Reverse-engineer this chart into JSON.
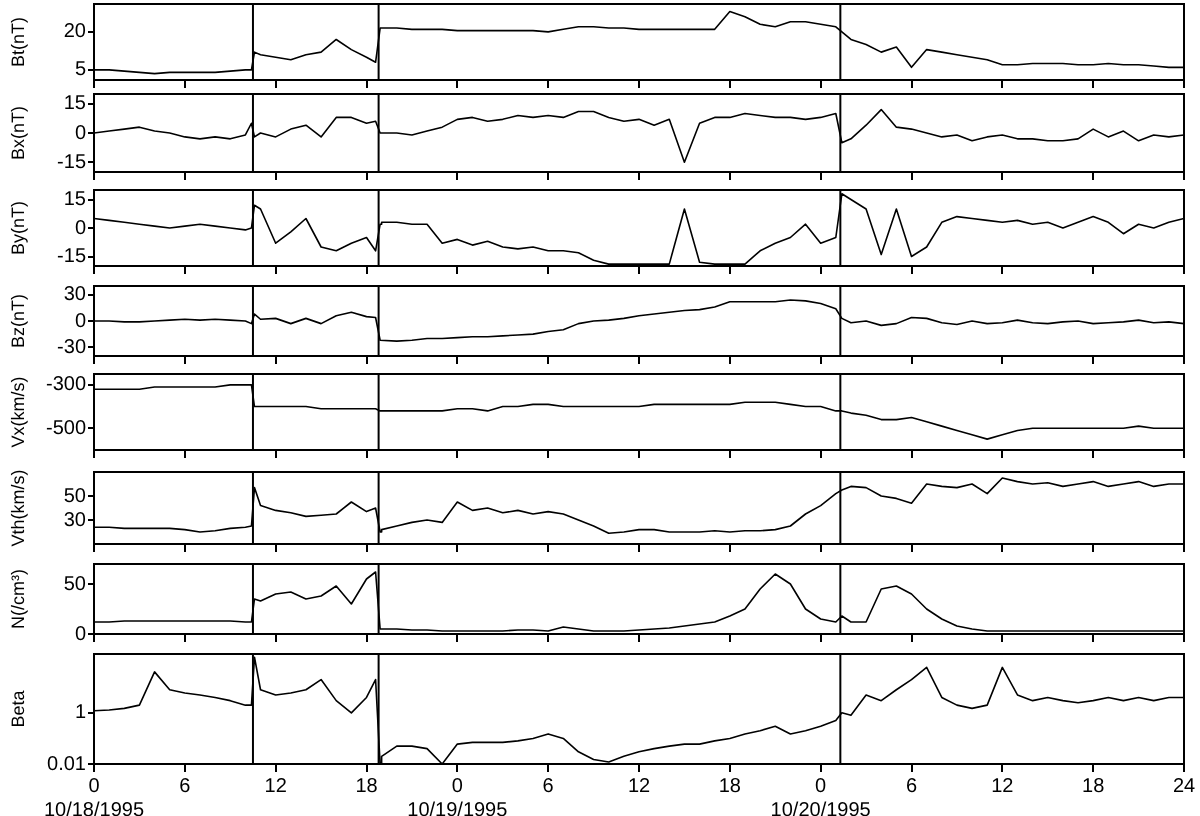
{
  "chart_data": [
    {
      "type": "line",
      "ylabel": "Bt(nT)",
      "color": "#000000",
      "xlim": [
        "1995-10-18T00:00",
        "1995-10-21T00:00"
      ],
      "ylim": [
        1,
        31
      ],
      "yticks": [
        5,
        20
      ],
      "tick_labels": "y",
      "ref_lines": [
        {
          "axis": "x",
          "value": "1995-10-18T10:30"
        },
        {
          "axis": "x",
          "value": "1995-10-18T18:48"
        },
        {
          "axis": "x",
          "value": "1995-10-20T01:18"
        }
      ],
      "xticks": [
        "1995-10-18T00:00",
        "1995-10-18T06:00",
        "1995-10-18T12:00",
        "1995-10-18T18:00",
        "1995-10-19T00:00",
        "1995-10-19T06:00",
        "1995-10-19T12:00",
        "1995-10-19T18:00",
        "1995-10-20T00:00",
        "1995-10-20T06:00",
        "1995-10-20T12:00",
        "1995-10-20T18:00",
        "1995-10-21T00:00"
      ],
      "x": [
        "1995-10-18T00:00",
        "1995-10-18T01:00",
        "1995-10-18T02:00",
        "1995-10-18T03:00",
        "1995-10-18T04:00",
        "1995-10-18T05:00",
        "1995-10-18T06:00",
        "1995-10-18T07:00",
        "1995-10-18T08:00",
        "1995-10-18T09:00",
        "1995-10-18T10:00",
        "1995-10-18T10:24",
        "1995-10-18T10:36",
        "1995-10-18T11:00",
        "1995-10-18T12:00",
        "1995-10-18T13:00",
        "1995-10-18T14:00",
        "1995-10-18T15:00",
        "1995-10-18T16:00",
        "1995-10-18T17:00",
        "1995-10-18T18:00",
        "1995-10-18T18:36",
        "1995-10-18T18:54",
        "1995-10-18T19:00",
        "1995-10-18T20:00",
        "1995-10-18T21:00",
        "1995-10-18T22:00",
        "1995-10-18T23:00",
        "1995-10-19T00:00",
        "1995-10-19T01:00",
        "1995-10-19T02:00",
        "1995-10-19T03:00",
        "1995-10-19T04:00",
        "1995-10-19T05:00",
        "1995-10-19T06:00",
        "1995-10-19T07:00",
        "1995-10-19T08:00",
        "1995-10-19T09:00",
        "1995-10-19T10:00",
        "1995-10-19T11:00",
        "1995-10-19T12:00",
        "1995-10-19T13:00",
        "1995-10-19T14:00",
        "1995-10-19T15:00",
        "1995-10-19T16:00",
        "1995-10-19T17:00",
        "1995-10-19T18:00",
        "1995-10-19T19:00",
        "1995-10-19T20:00",
        "1995-10-19T21:00",
        "1995-10-19T22:00",
        "1995-10-19T23:00",
        "1995-10-20T00:00",
        "1995-10-20T01:00",
        "1995-10-20T01:24",
        "1995-10-20T02:00",
        "1995-10-20T03:00",
        "1995-10-20T04:00",
        "1995-10-20T05:00",
        "1995-10-20T06:00",
        "1995-10-20T07:00",
        "1995-10-20T08:00",
        "1995-10-20T09:00",
        "1995-10-20T10:00",
        "1995-10-20T11:00",
        "1995-10-20T12:00",
        "1995-10-20T13:00",
        "1995-10-20T14:00",
        "1995-10-20T15:00",
        "1995-10-20T16:00",
        "1995-10-20T17:00",
        "1995-10-20T18:00",
        "1995-10-20T19:00",
        "1995-10-20T20:00",
        "1995-10-20T21:00",
        "1995-10-20T22:00",
        "1995-10-20T23:00",
        "1995-10-21T00:00"
      ],
      "values": [
        5,
        5,
        4.5,
        4,
        3.5,
        4,
        4,
        4,
        4,
        4.5,
        5,
        5,
        12,
        11,
        10,
        9,
        11,
        12,
        17,
        13,
        10,
        8,
        21.5,
        21.5,
        21.5,
        21,
        21,
        21,
        20.5,
        20.5,
        20.5,
        20.5,
        20.5,
        20.5,
        20,
        21,
        22,
        22,
        21.5,
        21.5,
        21,
        21,
        21,
        21,
        21,
        21,
        28,
        26,
        23,
        22,
        24,
        24,
        23,
        22,
        20,
        17,
        15,
        12,
        14,
        6,
        13,
        12,
        11,
        10,
        9,
        7,
        7,
        7.5,
        7.5,
        7.5,
        7,
        7,
        7.5,
        7,
        7,
        6.5,
        6,
        6
      ]
    },
    {
      "type": "line",
      "ylabel": "Bx(nT)",
      "color": "#000000",
      "xlim": [
        "1995-10-18T00:00",
        "1995-10-21T00:00"
      ],
      "ylim": [
        -20,
        20
      ],
      "yticks": [
        -15,
        0,
        15
      ],
      "tick_labels": "y",
      "ref_lines": [
        {
          "axis": "x",
          "value": "1995-10-18T10:30"
        },
        {
          "axis": "x",
          "value": "1995-10-18T18:48"
        },
        {
          "axis": "x",
          "value": "1995-10-20T01:18"
        }
      ],
      "xticks": [
        "1995-10-18T00:00",
        "1995-10-18T06:00",
        "1995-10-18T12:00",
        "1995-10-18T18:00",
        "1995-10-19T00:00",
        "1995-10-19T06:00",
        "1995-10-19T12:00",
        "1995-10-19T18:00",
        "1995-10-20T00:00",
        "1995-10-20T06:00",
        "1995-10-20T12:00",
        "1995-10-20T18:00",
        "1995-10-21T00:00"
      ],
      "x": [
        "1995-10-18T00:00",
        "1995-10-18T01:00",
        "1995-10-18T02:00",
        "1995-10-18T03:00",
        "1995-10-18T04:00",
        "1995-10-18T05:00",
        "1995-10-18T06:00",
        "1995-10-18T07:00",
        "1995-10-18T08:00",
        "1995-10-18T09:00",
        "1995-10-18T10:00",
        "1995-10-18T10:24",
        "1995-10-18T10:36",
        "1995-10-18T11:00",
        "1995-10-18T12:00",
        "1995-10-18T13:00",
        "1995-10-18T14:00",
        "1995-10-18T15:00",
        "1995-10-18T16:00",
        "1995-10-18T17:00",
        "1995-10-18T18:00",
        "1995-10-18T18:36",
        "1995-10-18T18:54",
        "1995-10-18T19:00",
        "1995-10-18T20:00",
        "1995-10-18T21:00",
        "1995-10-18T22:00",
        "1995-10-18T23:00",
        "1995-10-19T00:00",
        "1995-10-19T01:00",
        "1995-10-19T02:00",
        "1995-10-19T03:00",
        "1995-10-19T04:00",
        "1995-10-19T05:00",
        "1995-10-19T06:00",
        "1995-10-19T07:00",
        "1995-10-19T08:00",
        "1995-10-19T09:00",
        "1995-10-19T10:00",
        "1995-10-19T11:00",
        "1995-10-19T12:00",
        "1995-10-19T13:00",
        "1995-10-19T14:00",
        "1995-10-19T15:00",
        "1995-10-19T16:00",
        "1995-10-19T17:00",
        "1995-10-19T18:00",
        "1995-10-19T19:00",
        "1995-10-19T20:00",
        "1995-10-19T21:00",
        "1995-10-19T22:00",
        "1995-10-19T23:00",
        "1995-10-20T00:00",
        "1995-10-20T01:00",
        "1995-10-20T01:24",
        "1995-10-20T02:00",
        "1995-10-20T03:00",
        "1995-10-20T04:00",
        "1995-10-20T05:00",
        "1995-10-20T06:00",
        "1995-10-20T07:00",
        "1995-10-20T08:00",
        "1995-10-20T09:00",
        "1995-10-20T10:00",
        "1995-10-20T11:00",
        "1995-10-20T12:00",
        "1995-10-20T13:00",
        "1995-10-20T14:00",
        "1995-10-20T15:00",
        "1995-10-20T16:00",
        "1995-10-20T17:00",
        "1995-10-20T18:00",
        "1995-10-20T19:00",
        "1995-10-20T20:00",
        "1995-10-20T21:00",
        "1995-10-20T22:00",
        "1995-10-20T23:00",
        "1995-10-21T00:00"
      ],
      "values": [
        0,
        1,
        2,
        3,
        1,
        0,
        -2,
        -3,
        -2,
        -3,
        -1,
        5,
        -2,
        0,
        -2,
        2,
        4,
        -2,
        8,
        8,
        5,
        6,
        0,
        0,
        0,
        -1,
        1,
        3,
        7,
        8,
        6,
        7,
        9,
        8,
        9,
        8,
        11,
        11,
        8,
        6,
        7,
        4,
        7,
        -15,
        5,
        8,
        8,
        10,
        9,
        8,
        8,
        7,
        8,
        10,
        -5,
        -3,
        4,
        12,
        3,
        2,
        0,
        -2,
        -1,
        -4,
        -2,
        -1,
        -3,
        -3,
        -4,
        -4,
        -3,
        2,
        -2,
        1,
        -4,
        -1,
        -2,
        -1
      ]
    },
    {
      "type": "line",
      "ylabel": "By(nT)",
      "color": "#000000",
      "xlim": [
        "1995-10-18T00:00",
        "1995-10-21T00:00"
      ],
      "ylim": [
        -20,
        20
      ],
      "yticks": [
        -15,
        0,
        15
      ],
      "tick_labels": "y",
      "ref_lines": [
        {
          "axis": "x",
          "value": "1995-10-18T10:30"
        },
        {
          "axis": "x",
          "value": "1995-10-18T18:48"
        },
        {
          "axis": "x",
          "value": "1995-10-20T01:18"
        }
      ],
      "xticks": [
        "1995-10-18T00:00",
        "1995-10-18T06:00",
        "1995-10-18T12:00",
        "1995-10-18T18:00",
        "1995-10-19T00:00",
        "1995-10-19T06:00",
        "1995-10-19T12:00",
        "1995-10-19T18:00",
        "1995-10-20T00:00",
        "1995-10-20T06:00",
        "1995-10-20T12:00",
        "1995-10-20T18:00",
        "1995-10-21T00:00"
      ],
      "x": [
        "1995-10-18T00:00",
        "1995-10-18T01:00",
        "1995-10-18T02:00",
        "1995-10-18T03:00",
        "1995-10-18T04:00",
        "1995-10-18T05:00",
        "1995-10-18T06:00",
        "1995-10-18T07:00",
        "1995-10-18T08:00",
        "1995-10-18T09:00",
        "1995-10-18T10:00",
        "1995-10-18T10:24",
        "1995-10-18T10:36",
        "1995-10-18T11:00",
        "1995-10-18T12:00",
        "1995-10-18T13:00",
        "1995-10-18T14:00",
        "1995-10-18T15:00",
        "1995-10-18T16:00",
        "1995-10-18T17:00",
        "1995-10-18T18:00",
        "1995-10-18T18:36",
        "1995-10-18T18:54",
        "1995-10-18T19:00",
        "1995-10-18T20:00",
        "1995-10-18T21:00",
        "1995-10-18T22:00",
        "1995-10-18T23:00",
        "1995-10-19T00:00",
        "1995-10-19T01:00",
        "1995-10-19T02:00",
        "1995-10-19T03:00",
        "1995-10-19T04:00",
        "1995-10-19T05:00",
        "1995-10-19T06:00",
        "1995-10-19T07:00",
        "1995-10-19T08:00",
        "1995-10-19T09:00",
        "1995-10-19T10:00",
        "1995-10-19T11:00",
        "1995-10-19T12:00",
        "1995-10-19T13:00",
        "1995-10-19T14:00",
        "1995-10-19T15:00",
        "1995-10-19T16:00",
        "1995-10-19T17:00",
        "1995-10-19T18:00",
        "1995-10-19T19:00",
        "1995-10-19T20:00",
        "1995-10-19T21:00",
        "1995-10-19T22:00",
        "1995-10-19T23:00",
        "1995-10-20T00:00",
        "1995-10-20T01:00",
        "1995-10-20T01:24",
        "1995-10-20T02:00",
        "1995-10-20T03:00",
        "1995-10-20T04:00",
        "1995-10-20T05:00",
        "1995-10-20T06:00",
        "1995-10-20T07:00",
        "1995-10-20T08:00",
        "1995-10-20T09:00",
        "1995-10-20T10:00",
        "1995-10-20T11:00",
        "1995-10-20T12:00",
        "1995-10-20T13:00",
        "1995-10-20T14:00",
        "1995-10-20T15:00",
        "1995-10-20T16:00",
        "1995-10-20T17:00",
        "1995-10-20T18:00",
        "1995-10-20T19:00",
        "1995-10-20T20:00",
        "1995-10-20T21:00",
        "1995-10-20T22:00",
        "1995-10-20T23:00",
        "1995-10-21T00:00"
      ],
      "values": [
        5,
        4,
        3,
        2,
        1,
        0,
        1,
        2,
        1,
        0,
        -1,
        0,
        12,
        10,
        -8,
        -2,
        5,
        -10,
        -12,
        -8,
        -5,
        -12,
        2,
        3,
        3,
        2,
        2,
        -8,
        -6,
        -9,
        -7,
        -10,
        -11,
        -10,
        -12,
        -12,
        -13,
        -17,
        -19,
        -19,
        -19,
        -19,
        -19,
        10,
        -18,
        -19,
        -19,
        -19,
        -12,
        -8,
        -5,
        2,
        -8,
        -5,
        18,
        15,
        10,
        -14,
        10,
        -15,
        -10,
        3,
        6,
        5,
        4,
        3,
        4,
        2,
        3,
        0,
        3,
        6,
        3,
        -3,
        2,
        0,
        3,
        5
      ]
    },
    {
      "type": "line",
      "ylabel": "Bz(nT)",
      "color": "#000000",
      "xlim": [
        "1995-10-18T00:00",
        "1995-10-21T00:00"
      ],
      "ylim": [
        -40,
        40
      ],
      "yticks": [
        -30,
        0,
        30
      ],
      "tick_labels": "y",
      "ref_lines": [
        {
          "axis": "x",
          "value": "1995-10-18T10:30"
        },
        {
          "axis": "x",
          "value": "1995-10-18T18:48"
        },
        {
          "axis": "x",
          "value": "1995-10-20T01:18"
        }
      ],
      "xticks": [
        "1995-10-18T00:00",
        "1995-10-18T06:00",
        "1995-10-18T12:00",
        "1995-10-18T18:00",
        "1995-10-19T00:00",
        "1995-10-19T06:00",
        "1995-10-19T12:00",
        "1995-10-19T18:00",
        "1995-10-20T00:00",
        "1995-10-20T06:00",
        "1995-10-20T12:00",
        "1995-10-20T18:00",
        "1995-10-21T00:00"
      ],
      "x": [
        "1995-10-18T00:00",
        "1995-10-18T01:00",
        "1995-10-18T02:00",
        "1995-10-18T03:00",
        "1995-10-18T04:00",
        "1995-10-18T05:00",
        "1995-10-18T06:00",
        "1995-10-18T07:00",
        "1995-10-18T08:00",
        "1995-10-18T09:00",
        "1995-10-18T10:00",
        "1995-10-18T10:24",
        "1995-10-18T10:36",
        "1995-10-18T11:00",
        "1995-10-18T12:00",
        "1995-10-18T13:00",
        "1995-10-18T14:00",
        "1995-10-18T15:00",
        "1995-10-18T16:00",
        "1995-10-18T17:00",
        "1995-10-18T18:00",
        "1995-10-18T18:36",
        "1995-10-18T18:54",
        "1995-10-18T19:00",
        "1995-10-18T20:00",
        "1995-10-18T21:00",
        "1995-10-18T22:00",
        "1995-10-18T23:00",
        "1995-10-19T00:00",
        "1995-10-19T01:00",
        "1995-10-19T02:00",
        "1995-10-19T03:00",
        "1995-10-19T04:00",
        "1995-10-19T05:00",
        "1995-10-19T06:00",
        "1995-10-19T07:00",
        "1995-10-19T08:00",
        "1995-10-19T09:00",
        "1995-10-19T10:00",
        "1995-10-19T11:00",
        "1995-10-19T12:00",
        "1995-10-19T13:00",
        "1995-10-19T14:00",
        "1995-10-19T15:00",
        "1995-10-19T16:00",
        "1995-10-19T17:00",
        "1995-10-19T18:00",
        "1995-10-19T19:00",
        "1995-10-19T20:00",
        "1995-10-19T21:00",
        "1995-10-19T22:00",
        "1995-10-19T23:00",
        "1995-10-20T00:00",
        "1995-10-20T01:00",
        "1995-10-20T01:24",
        "1995-10-20T02:00",
        "1995-10-20T03:00",
        "1995-10-20T04:00",
        "1995-10-20T05:00",
        "1995-10-20T06:00",
        "1995-10-20T07:00",
        "1995-10-20T08:00",
        "1995-10-20T09:00",
        "1995-10-20T10:00",
        "1995-10-20T11:00",
        "1995-10-20T12:00",
        "1995-10-20T13:00",
        "1995-10-20T14:00",
        "1995-10-20T15:00",
        "1995-10-20T16:00",
        "1995-10-20T17:00",
        "1995-10-20T18:00",
        "1995-10-20T19:00",
        "1995-10-20T20:00",
        "1995-10-20T21:00",
        "1995-10-20T22:00",
        "1995-10-20T23:00",
        "1995-10-21T00:00"
      ],
      "values": [
        0,
        0,
        -1,
        -1,
        0,
        1,
        2,
        1,
        2,
        1,
        0,
        -3,
        8,
        2,
        3,
        -3,
        3,
        -3,
        6,
        10,
        5,
        4,
        -22,
        -22,
        -23,
        -22,
        -20,
        -20,
        -19,
        -18,
        -18,
        -17,
        -16,
        -15,
        -12,
        -10,
        -3,
        0,
        1,
        3,
        6,
        8,
        10,
        12,
        13,
        16,
        22,
        22,
        22,
        22,
        24,
        23,
        20,
        14,
        3,
        -2,
        0,
        -5,
        -3,
        4,
        3,
        -2,
        -4,
        0,
        -3,
        -2,
        1,
        -2,
        -3,
        -1,
        0,
        -3,
        -2,
        -1,
        1,
        -2,
        -1,
        -3
      ]
    },
    {
      "type": "line",
      "ylabel": "Vx(km/s)",
      "color": "#000000",
      "xlim": [
        "1995-10-18T00:00",
        "1995-10-21T00:00"
      ],
      "ylim": [
        -600,
        -250
      ],
      "yticks": [
        -500,
        -300
      ],
      "tick_labels": "y",
      "ref_lines": [
        {
          "axis": "x",
          "value": "1995-10-18T10:30"
        },
        {
          "axis": "x",
          "value": "1995-10-18T18:48"
        },
        {
          "axis": "x",
          "value": "1995-10-20T01:18"
        }
      ],
      "xticks": [
        "1995-10-18T00:00",
        "1995-10-18T06:00",
        "1995-10-18T12:00",
        "1995-10-18T18:00",
        "1995-10-19T00:00",
        "1995-10-19T06:00",
        "1995-10-19T12:00",
        "1995-10-19T18:00",
        "1995-10-20T00:00",
        "1995-10-20T06:00",
        "1995-10-20T12:00",
        "1995-10-20T18:00",
        "1995-10-21T00:00"
      ],
      "x": [
        "1995-10-18T00:00",
        "1995-10-18T01:00",
        "1995-10-18T02:00",
        "1995-10-18T03:00",
        "1995-10-18T04:00",
        "1995-10-18T05:00",
        "1995-10-18T06:00",
        "1995-10-18T07:00",
        "1995-10-18T08:00",
        "1995-10-18T09:00",
        "1995-10-18T10:00",
        "1995-10-18T10:24",
        "1995-10-18T10:36",
        "1995-10-18T11:00",
        "1995-10-18T12:00",
        "1995-10-18T13:00",
        "1995-10-18T14:00",
        "1995-10-18T15:00",
        "1995-10-18T16:00",
        "1995-10-18T17:00",
        "1995-10-18T18:00",
        "1995-10-18T18:36",
        "1995-10-18T18:54",
        "1995-10-18T19:00",
        "1995-10-18T20:00",
        "1995-10-18T21:00",
        "1995-10-18T22:00",
        "1995-10-18T23:00",
        "1995-10-19T00:00",
        "1995-10-19T01:00",
        "1995-10-19T02:00",
        "1995-10-19T03:00",
        "1995-10-19T04:00",
        "1995-10-19T05:00",
        "1995-10-19T06:00",
        "1995-10-19T07:00",
        "1995-10-19T08:00",
        "1995-10-19T09:00",
        "1995-10-19T10:00",
        "1995-10-19T11:00",
        "1995-10-19T12:00",
        "1995-10-19T13:00",
        "1995-10-19T14:00",
        "1995-10-19T15:00",
        "1995-10-19T16:00",
        "1995-10-19T17:00",
        "1995-10-19T18:00",
        "1995-10-19T19:00",
        "1995-10-19T20:00",
        "1995-10-19T21:00",
        "1995-10-19T22:00",
        "1995-10-19T23:00",
        "1995-10-20T00:00",
        "1995-10-20T01:00",
        "1995-10-20T01:24",
        "1995-10-20T02:00",
        "1995-10-20T03:00",
        "1995-10-20T04:00",
        "1995-10-20T05:00",
        "1995-10-20T06:00",
        "1995-10-20T07:00",
        "1995-10-20T08:00",
        "1995-10-20T09:00",
        "1995-10-20T10:00",
        "1995-10-20T11:00",
        "1995-10-20T12:00",
        "1995-10-20T13:00",
        "1995-10-20T14:00",
        "1995-10-20T15:00",
        "1995-10-20T16:00",
        "1995-10-20T17:00",
        "1995-10-20T18:00",
        "1995-10-20T19:00",
        "1995-10-20T20:00",
        "1995-10-20T21:00",
        "1995-10-20T22:00",
        "1995-10-20T23:00",
        "1995-10-21T00:00"
      ],
      "values": [
        -320,
        -320,
        -320,
        -320,
        -310,
        -310,
        -310,
        -310,
        -310,
        -300,
        -300,
        -300,
        -400,
        -400,
        -400,
        -400,
        -400,
        -410,
        -410,
        -410,
        -410,
        -410,
        -420,
        -420,
        -420,
        -420,
        -420,
        -420,
        -410,
        -410,
        -420,
        -400,
        -400,
        -390,
        -390,
        -400,
        -400,
        -400,
        -400,
        -400,
        -400,
        -390,
        -390,
        -390,
        -390,
        -390,
        -390,
        -380,
        -380,
        -380,
        -390,
        -400,
        -400,
        -420,
        -420,
        -430,
        -440,
        -460,
        -460,
        -450,
        -470,
        -490,
        -510,
        -530,
        -550,
        -530,
        -510,
        -500,
        -500,
        -500,
        -500,
        -500,
        -500,
        -500,
        -490,
        -500,
        -500,
        -500
      ]
    },
    {
      "type": "line",
      "ylabel": "Vth(km/s)",
      "color": "#000000",
      "xlim": [
        "1995-10-18T00:00",
        "1995-10-21T00:00"
      ],
      "ylim": [
        10,
        70
      ],
      "yticks": [
        30,
        50
      ],
      "tick_labels": "y",
      "ref_lines": [
        {
          "axis": "x",
          "value": "1995-10-18T10:30"
        },
        {
          "axis": "x",
          "value": "1995-10-18T18:48"
        },
        {
          "axis": "x",
          "value": "1995-10-20T01:18"
        }
      ],
      "xticks": [
        "1995-10-18T00:00",
        "1995-10-18T06:00",
        "1995-10-18T12:00",
        "1995-10-18T18:00",
        "1995-10-19T00:00",
        "1995-10-19T06:00",
        "1995-10-19T12:00",
        "1995-10-19T18:00",
        "1995-10-20T00:00",
        "1995-10-20T06:00",
        "1995-10-20T12:00",
        "1995-10-20T18:00",
        "1995-10-21T00:00"
      ],
      "x": [
        "1995-10-18T00:00",
        "1995-10-18T01:00",
        "1995-10-18T02:00",
        "1995-10-18T03:00",
        "1995-10-18T04:00",
        "1995-10-18T05:00",
        "1995-10-18T06:00",
        "1995-10-18T07:00",
        "1995-10-18T08:00",
        "1995-10-18T09:00",
        "1995-10-18T10:00",
        "1995-10-18T10:24",
        "1995-10-18T10:36",
        "1995-10-18T11:00",
        "1995-10-18T12:00",
        "1995-10-18T13:00",
        "1995-10-18T14:00",
        "1995-10-18T15:00",
        "1995-10-18T16:00",
        "1995-10-18T17:00",
        "1995-10-18T18:00",
        "1995-10-18T18:36",
        "1995-10-18T18:54",
        "1995-10-18T19:00",
        "1995-10-18T20:00",
        "1995-10-18T21:00",
        "1995-10-18T22:00",
        "1995-10-18T23:00",
        "1995-10-19T00:00",
        "1995-10-19T01:00",
        "1995-10-19T02:00",
        "1995-10-19T03:00",
        "1995-10-19T04:00",
        "1995-10-19T05:00",
        "1995-10-19T06:00",
        "1995-10-19T07:00",
        "1995-10-19T08:00",
        "1995-10-19T09:00",
        "1995-10-19T10:00",
        "1995-10-19T11:00",
        "1995-10-19T12:00",
        "1995-10-19T13:00",
        "1995-10-19T14:00",
        "1995-10-19T15:00",
        "1995-10-19T16:00",
        "1995-10-19T17:00",
        "1995-10-19T18:00",
        "1995-10-19T19:00",
        "1995-10-19T20:00",
        "1995-10-19T21:00",
        "1995-10-19T22:00",
        "1995-10-19T23:00",
        "1995-10-20T00:00",
        "1995-10-20T01:00",
        "1995-10-20T01:24",
        "1995-10-20T02:00",
        "1995-10-20T03:00",
        "1995-10-20T04:00",
        "1995-10-20T05:00",
        "1995-10-20T06:00",
        "1995-10-20T07:00",
        "1995-10-20T08:00",
        "1995-10-20T09:00",
        "1995-10-20T10:00",
        "1995-10-20T11:00",
        "1995-10-20T12:00",
        "1995-10-20T13:00",
        "1995-10-20T14:00",
        "1995-10-20T15:00",
        "1995-10-20T16:00",
        "1995-10-20T17:00",
        "1995-10-20T18:00",
        "1995-10-20T19:00",
        "1995-10-20T20:00",
        "1995-10-20T21:00",
        "1995-10-20T22:00",
        "1995-10-20T23:00",
        "1995-10-21T00:00"
      ],
      "values": [
        24,
        24,
        23,
        23,
        23,
        23,
        22,
        20,
        21,
        23,
        24,
        25,
        57,
        42,
        38,
        36,
        33,
        34,
        35,
        45,
        37,
        40,
        20,
        22,
        25,
        28,
        30,
        28,
        45,
        38,
        40,
        36,
        38,
        35,
        37,
        35,
        30,
        25,
        19,
        20,
        22,
        22,
        20,
        20,
        20,
        21,
        20,
        21,
        21,
        22,
        25,
        35,
        42,
        52,
        55,
        58,
        57,
        50,
        48,
        44,
        60,
        58,
        57,
        60,
        52,
        65,
        62,
        60,
        61,
        58,
        60,
        62,
        58,
        60,
        62,
        58,
        60,
        60
      ]
    },
    {
      "type": "line",
      "ylabel": "N(/cm³)",
      "color": "#000000",
      "xlim": [
        "1995-10-18T00:00",
        "1995-10-21T00:00"
      ],
      "ylim": [
        0,
        70
      ],
      "yticks": [
        0,
        50
      ],
      "tick_labels": "y",
      "ref_lines": [
        {
          "axis": "x",
          "value": "1995-10-18T10:30"
        },
        {
          "axis": "x",
          "value": "1995-10-18T18:48"
        },
        {
          "axis": "x",
          "value": "1995-10-20T01:18"
        }
      ],
      "xticks": [
        "1995-10-18T00:00",
        "1995-10-18T06:00",
        "1995-10-18T12:00",
        "1995-10-18T18:00",
        "1995-10-19T00:00",
        "1995-10-19T06:00",
        "1995-10-19T12:00",
        "1995-10-19T18:00",
        "1995-10-20T00:00",
        "1995-10-20T06:00",
        "1995-10-20T12:00",
        "1995-10-20T18:00",
        "1995-10-21T00:00"
      ],
      "x": [
        "1995-10-18T00:00",
        "1995-10-18T01:00",
        "1995-10-18T02:00",
        "1995-10-18T03:00",
        "1995-10-18T04:00",
        "1995-10-18T05:00",
        "1995-10-18T06:00",
        "1995-10-18T07:00",
        "1995-10-18T08:00",
        "1995-10-18T09:00",
        "1995-10-18T10:00",
        "1995-10-18T10:24",
        "1995-10-18T10:36",
        "1995-10-18T11:00",
        "1995-10-18T12:00",
        "1995-10-18T13:00",
        "1995-10-18T14:00",
        "1995-10-18T15:00",
        "1995-10-18T16:00",
        "1995-10-18T17:00",
        "1995-10-18T18:00",
        "1995-10-18T18:36",
        "1995-10-18T18:54",
        "1995-10-18T19:00",
        "1995-10-18T20:00",
        "1995-10-18T21:00",
        "1995-10-18T22:00",
        "1995-10-18T23:00",
        "1995-10-19T00:00",
        "1995-10-19T01:00",
        "1995-10-19T02:00",
        "1995-10-19T03:00",
        "1995-10-19T04:00",
        "1995-10-19T05:00",
        "1995-10-19T06:00",
        "1995-10-19T07:00",
        "1995-10-19T08:00",
        "1995-10-19T09:00",
        "1995-10-19T10:00",
        "1995-10-19T11:00",
        "1995-10-19T12:00",
        "1995-10-19T13:00",
        "1995-10-19T14:00",
        "1995-10-19T15:00",
        "1995-10-19T16:00",
        "1995-10-19T17:00",
        "1995-10-19T18:00",
        "1995-10-19T19:00",
        "1995-10-19T20:00",
        "1995-10-19T21:00",
        "1995-10-19T22:00",
        "1995-10-19T23:00",
        "1995-10-20T00:00",
        "1995-10-20T01:00",
        "1995-10-20T01:24",
        "1995-10-20T02:00",
        "1995-10-20T03:00",
        "1995-10-20T04:00",
        "1995-10-20T05:00",
        "1995-10-20T06:00",
        "1995-10-20T07:00",
        "1995-10-20T08:00",
        "1995-10-20T09:00",
        "1995-10-20T10:00",
        "1995-10-20T11:00",
        "1995-10-20T12:00",
        "1995-10-20T13:00",
        "1995-10-20T14:00",
        "1995-10-20T15:00",
        "1995-10-20T16:00",
        "1995-10-20T17:00",
        "1995-10-20T18:00",
        "1995-10-20T19:00",
        "1995-10-20T20:00",
        "1995-10-20T21:00",
        "1995-10-20T22:00",
        "1995-10-20T23:00",
        "1995-10-21T00:00"
      ],
      "values": [
        12,
        12,
        13,
        13,
        13,
        13,
        13,
        13,
        13,
        13,
        12,
        12,
        35,
        33,
        40,
        42,
        35,
        38,
        48,
        30,
        55,
        62,
        5,
        5,
        5,
        4,
        4,
        3,
        3,
        3,
        3,
        3,
        4,
        4,
        3,
        7,
        5,
        3,
        3,
        3,
        4,
        5,
        6,
        8,
        10,
        12,
        18,
        25,
        45,
        60,
        50,
        25,
        15,
        12,
        18,
        12,
        12,
        45,
        48,
        40,
        25,
        15,
        8,
        5,
        3,
        3,
        3,
        3,
        3,
        3,
        3,
        3,
        3,
        3,
        3,
        3,
        3,
        3
      ]
    },
    {
      "type": "line",
      "ylabel": "Beta",
      "color": "#000000",
      "log": "y",
      "xlim": [
        "1995-10-18T00:00",
        "1995-10-21T00:00"
      ],
      "ylim": [
        0.01,
        200
      ],
      "yticks": [
        0.01,
        1
      ],
      "ref_lines": [
        {
          "axis": "x",
          "value": "1995-10-18T10:30"
        },
        {
          "axis": "x",
          "value": "1995-10-18T18:48"
        },
        {
          "axis": "x",
          "value": "1995-10-20T01:18"
        }
      ],
      "xticks": [
        {
          "value": "1995-10-18T00:00",
          "label": "0\n10/18/1995"
        },
        {
          "value": "1995-10-18T06:00",
          "label": "6"
        },
        {
          "value": "1995-10-18T12:00",
          "label": "12"
        },
        {
          "value": "1995-10-18T18:00",
          "label": "18"
        },
        {
          "value": "1995-10-19T00:00",
          "label": "0\n10/19/1995"
        },
        {
          "value": "1995-10-19T06:00",
          "label": "6"
        },
        {
          "value": "1995-10-19T12:00",
          "label": "12"
        },
        {
          "value": "1995-10-19T18:00",
          "label": "18"
        },
        {
          "value": "1995-10-20T00:00",
          "label": "0\n10/20/1995"
        },
        {
          "value": "1995-10-20T06:00",
          "label": "6"
        },
        {
          "value": "1995-10-20T12:00",
          "label": "12"
        },
        {
          "value": "1995-10-20T18:00",
          "label": "18"
        },
        {
          "value": "1995-10-21T00:00",
          "label": "24"
        }
      ],
      "x": [
        "1995-10-18T00:00",
        "1995-10-18T01:00",
        "1995-10-18T02:00",
        "1995-10-18T03:00",
        "1995-10-18T04:00",
        "1995-10-18T05:00",
        "1995-10-18T06:00",
        "1995-10-18T07:00",
        "1995-10-18T08:00",
        "1995-10-18T09:00",
        "1995-10-18T10:00",
        "1995-10-18T10:24",
        "1995-10-18T10:36",
        "1995-10-18T11:00",
        "1995-10-18T12:00",
        "1995-10-18T13:00",
        "1995-10-18T14:00",
        "1995-10-18T15:00",
        "1995-10-18T16:00",
        "1995-10-18T17:00",
        "1995-10-18T18:00",
        "1995-10-18T18:36",
        "1995-10-18T18:54",
        "1995-10-18T19:00",
        "1995-10-18T20:00",
        "1995-10-18T21:00",
        "1995-10-18T22:00",
        "1995-10-18T23:00",
        "1995-10-19T00:00",
        "1995-10-19T01:00",
        "1995-10-19T02:00",
        "1995-10-19T03:00",
        "1995-10-19T04:00",
        "1995-10-19T05:00",
        "1995-10-19T06:00",
        "1995-10-19T07:00",
        "1995-10-19T08:00",
        "1995-10-19T09:00",
        "1995-10-19T10:00",
        "1995-10-19T11:00",
        "1995-10-19T12:00",
        "1995-10-19T13:00",
        "1995-10-19T14:00",
        "1995-10-19T15:00",
        "1995-10-19T16:00",
        "1995-10-19T17:00",
        "1995-10-19T18:00",
        "1995-10-19T19:00",
        "1995-10-19T20:00",
        "1995-10-19T21:00",
        "1995-10-19T22:00",
        "1995-10-19T23:00",
        "1995-10-20T00:00",
        "1995-10-20T01:00",
        "1995-10-20T01:24",
        "1995-10-20T02:00",
        "1995-10-20T03:00",
        "1995-10-20T04:00",
        "1995-10-20T05:00",
        "1995-10-20T06:00",
        "1995-10-20T07:00",
        "1995-10-20T08:00",
        "1995-10-20T09:00",
        "1995-10-20T10:00",
        "1995-10-20T11:00",
        "1995-10-20T12:00",
        "1995-10-20T13:00",
        "1995-10-20T14:00",
        "1995-10-20T15:00",
        "1995-10-20T16:00",
        "1995-10-20T17:00",
        "1995-10-20T18:00",
        "1995-10-20T19:00",
        "1995-10-20T20:00",
        "1995-10-20T21:00",
        "1995-10-20T22:00",
        "1995-10-20T23:00",
        "1995-10-21T00:00"
      ],
      "values": [
        1.2,
        1.3,
        1.5,
        2,
        40,
        8,
        6,
        5,
        4,
        3,
        2,
        2,
        150,
        8,
        5,
        6,
        8,
        20,
        3,
        1,
        4,
        20,
        0.01,
        0.02,
        0.05,
        0.05,
        0.04,
        0.01,
        0.06,
        0.07,
        0.07,
        0.07,
        0.08,
        0.1,
        0.15,
        0.1,
        0.03,
        0.015,
        0.012,
        0.02,
        0.03,
        0.04,
        0.05,
        0.06,
        0.06,
        0.08,
        0.1,
        0.15,
        0.2,
        0.3,
        0.15,
        0.2,
        0.3,
        0.5,
        1,
        0.8,
        5,
        3,
        8,
        20,
        60,
        4,
        2,
        1.5,
        2,
        60,
        5,
        3,
        4,
        3,
        2.5,
        3,
        4,
        3,
        4,
        3,
        4,
        4
      ]
    }
  ]
}
